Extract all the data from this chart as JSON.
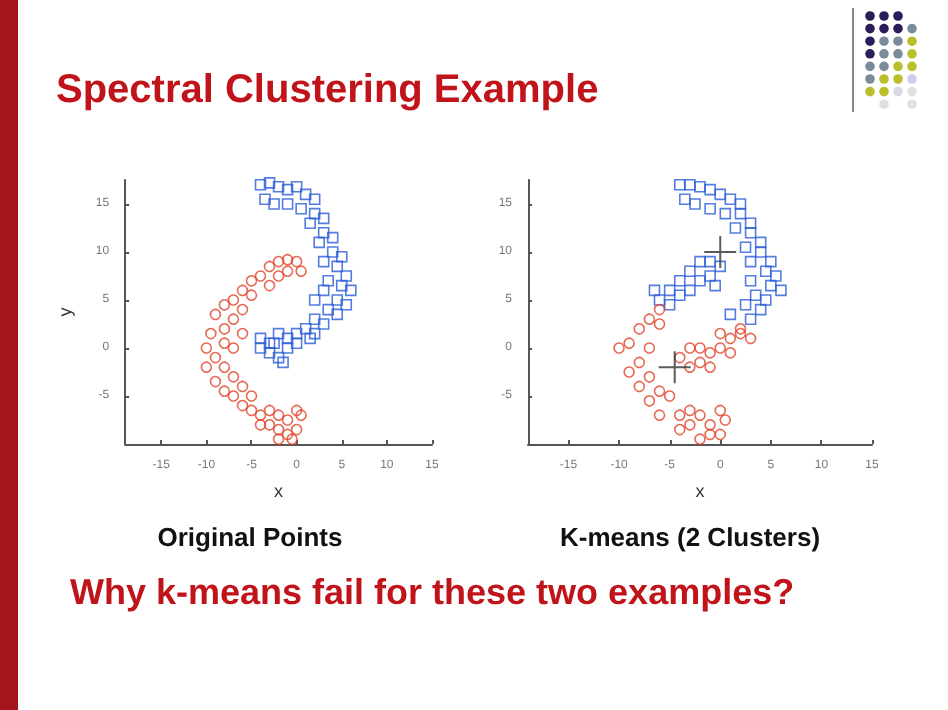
{
  "chart_data": [
    {
      "type": "scatter",
      "title": "Original Points",
      "xlabel": "x",
      "ylabel": "y",
      "annotations": [
        "Spectral Clustering Example"
      ],
      "xlim": [
        -19,
        15
      ],
      "ylim": [
        -10,
        17.5
      ],
      "xticks": [
        -15,
        -10,
        -5,
        0,
        5,
        10,
        15
      ],
      "yticks": [
        -5,
        0,
        5,
        10,
        15
      ],
      "grid": false,
      "series": [
        {
          "color": "#2a5bd7",
          "marker": "square",
          "x": [
            -4,
            -3,
            -2,
            -1,
            0,
            1,
            2,
            -3.5,
            -2.5,
            -1,
            0.5,
            2,
            3,
            1.5,
            3,
            4,
            2.5,
            4,
            5,
            3,
            4.5,
            5.5,
            3.5,
            5,
            6,
            3,
            4.5,
            5.5,
            2,
            3.5,
            4.5,
            2,
            3,
            1,
            0,
            1.5,
            -1,
            -2,
            -3,
            -4,
            -4,
            -3,
            -2,
            -1,
            -1.5,
            0,
            -2.5,
            2
          ],
          "values": [
            17,
            17.2,
            16.8,
            16.5,
            16.8,
            16,
            15.5,
            15.5,
            15,
            15,
            14.5,
            14,
            13.5,
            13,
            12,
            11.5,
            11,
            10,
            9.5,
            9,
            8.5,
            7.5,
            7,
            6.5,
            6,
            6,
            5,
            4.5,
            5,
            4,
            3.5,
            3,
            2.5,
            2,
            1.5,
            1,
            1,
            1.5,
            0.5,
            1,
            0,
            -0.5,
            -1,
            0,
            -1.5,
            0.5,
            0.5,
            1.5
          ]
        },
        {
          "color": "#e0452a",
          "marker": "circle",
          "x": [
            -2,
            -1,
            0,
            0.5,
            -1,
            -3,
            -2,
            -4,
            -5,
            -3,
            -6,
            -5,
            -7,
            -8,
            -6,
            -9,
            -7,
            -8,
            -9.5,
            -6,
            -8,
            -10,
            -7,
            -9,
            -8,
            -10,
            -7,
            -9,
            -8,
            -6,
            -7,
            -6,
            -5,
            -4,
            -5,
            -3,
            -3,
            -2,
            -1,
            0,
            0.5,
            -1,
            -2,
            0,
            -4,
            -2,
            -0.5
          ],
          "values": [
            9,
            9.2,
            9,
            8,
            8,
            8.5,
            7.5,
            7.5,
            7,
            6.5,
            6,
            5.5,
            5,
            4.5,
            4,
            3.5,
            3,
            2,
            1.5,
            1.5,
            0.5,
            0,
            0,
            -1,
            -2,
            -2,
            -3,
            -3.5,
            -4.5,
            -4,
            -5,
            -6,
            -5,
            -7,
            -6.5,
            -6.5,
            -8,
            -7,
            -7.5,
            -6.5,
            -7,
            -9,
            -9.5,
            -8.5,
            -8,
            -8.5,
            -9.5
          ]
        }
      ]
    },
    {
      "type": "scatter",
      "title": "K-means (2 Clusters)",
      "xlabel": "x",
      "annotations": [
        "Why k-means fail for these two examples?"
      ],
      "xlim": [
        -19,
        15
      ],
      "ylim": [
        -10,
        17.5
      ],
      "xticks": [
        -15,
        -10,
        -5,
        0,
        5,
        10,
        15
      ],
      "yticks": [
        -5,
        0,
        5,
        10,
        15
      ],
      "grid": false,
      "series": [
        {
          "color": "#2a5bd7",
          "marker": "square",
          "x": [
            -4,
            -3,
            -2,
            -1,
            0,
            1,
            2,
            -3.5,
            -2.5,
            -1,
            0.5,
            2,
            3,
            1.5,
            3,
            4,
            2.5,
            4,
            5,
            3,
            4.5,
            5.5,
            3,
            5,
            6,
            3.5,
            4.5,
            2.5,
            4,
            1,
            3,
            -6,
            -5,
            -4,
            -3,
            -2,
            -1,
            -4,
            -2,
            -3,
            -1,
            -5,
            -6.5,
            0,
            -0.5
          ],
          "values": [
            17,
            17,
            16.8,
            16.5,
            16,
            15.5,
            15,
            15.5,
            15,
            14.5,
            14,
            14,
            13,
            12.5,
            12,
            11,
            10.5,
            10,
            9,
            9,
            8,
            7.5,
            7,
            6.5,
            6,
            5.5,
            5,
            4.5,
            4,
            3.5,
            3,
            5,
            6,
            7,
            8,
            9,
            9,
            5.5,
            7,
            6,
            7.5,
            4.5,
            6,
            8.5,
            6.5
          ]
        },
        {
          "color": "#e0452a",
          "marker": "circle",
          "x": [
            -6,
            -7,
            -8,
            -6,
            -9,
            -7,
            -10,
            -8,
            -9,
            -7,
            -8,
            -6,
            -7,
            -5,
            -6,
            -4,
            -3,
            -2,
            -1,
            0,
            0.5,
            -1,
            -2,
            -3,
            0,
            -4,
            -4,
            -3,
            -2,
            -1,
            0,
            1,
            2,
            3,
            2,
            0,
            -2,
            -3,
            1,
            -1
          ],
          "values": [
            4,
            3,
            2,
            2.5,
            0.5,
            0,
            0,
            -1.5,
            -2.5,
            -3,
            -4,
            -4.5,
            -5.5,
            -5,
            -7,
            -7,
            -8,
            -7,
            -8,
            -6.5,
            -7.5,
            -9,
            -9.5,
            -6.5,
            -9,
            -8.5,
            -1,
            -2,
            -1.5,
            -0.5,
            0,
            1,
            1.5,
            1,
            2,
            1.5,
            0,
            0,
            -0.5,
            -2
          ]
        },
        {
          "color": "#333333",
          "marker": "cross",
          "x": [
            0,
            -4.5
          ],
          "values": [
            10,
            -2
          ]
        }
      ]
    }
  ]
}
